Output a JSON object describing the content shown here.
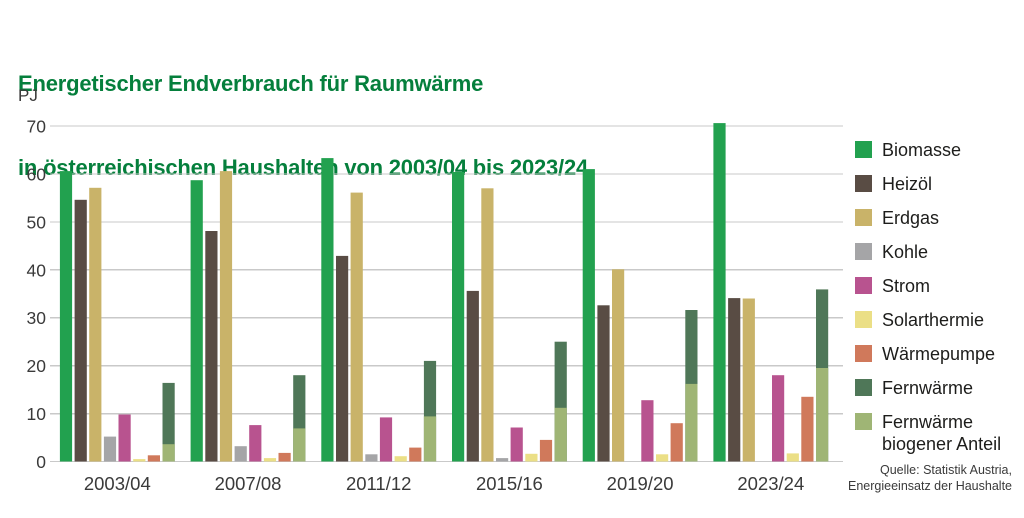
{
  "header": {
    "title_line1": "Energetischer Endverbrauch für Raumwärme",
    "title_line2": "in österreichischen Haushalten von 2003/04 bis 2023/24"
  },
  "footer": {
    "source_line1": "Quelle: Statistik Austria,",
    "source_line2": "Energieeinsatz der Haushalte"
  },
  "style": {
    "title_color": "#057F3C",
    "axis_text_color": "#3A3A3A",
    "grid_color": "#C9C9C9"
  },
  "chart_data": {
    "type": "bar",
    "title": "Energetischer Endverbrauch für Raumwärme in österreichischen Haushalten von 2003/04 bis 2023/24",
    "xlabel": "",
    "ylabel": "PJ",
    "ylim": [
      0,
      70
    ],
    "ytick_step": 10,
    "yticks": [
      0,
      10,
      20,
      30,
      40,
      50,
      60,
      70
    ],
    "grid": true,
    "legend_position": "right",
    "categories": [
      "2003/04",
      "2007/08",
      "2011/12",
      "2015/16",
      "2019/20",
      "2023/24"
    ],
    "series": [
      {
        "name": "Biomasse",
        "color": "#22A14F",
        "values": [
          60.6,
          58.7,
          63.3,
          60.4,
          61.0,
          70.6
        ]
      },
      {
        "name": "Heizöl",
        "color": "#594C44",
        "values": [
          54.6,
          48.1,
          42.9,
          35.6,
          32.6,
          34.1
        ]
      },
      {
        "name": "Erdgas",
        "color": "#C9B369",
        "values": [
          57.1,
          60.6,
          56.1,
          57.0,
          40.1,
          34.0
        ]
      },
      {
        "name": "Kohle",
        "color": "#A5A5A7",
        "values": [
          5.2,
          3.2,
          1.5,
          0.7,
          0,
          0
        ]
      },
      {
        "name": "Strom",
        "color": "#B8538F",
        "values": [
          9.8,
          7.6,
          9.2,
          7.1,
          12.8,
          18.0
        ]
      },
      {
        "name": "Solarthermie",
        "color": "#EBDF86",
        "values": [
          0.5,
          0.7,
          1.1,
          1.6,
          1.5,
          1.7
        ]
      },
      {
        "name": "Wärmepumpe",
        "color": "#D0795B",
        "values": [
          1.3,
          1.8,
          2.9,
          4.5,
          8.0,
          13.5
        ]
      },
      {
        "name": "Fernwärme",
        "color": "#4F7758",
        "values": [
          16.4,
          18.0,
          21.0,
          25.0,
          31.6,
          35.9
        ]
      },
      {
        "name": "Fernwärme biogener Anteil",
        "color": "#9FB575",
        "values": [
          3.6,
          6.9,
          9.4,
          11.2,
          16.2,
          19.5
        ],
        "overlay_of": "Fernwärme"
      }
    ]
  }
}
